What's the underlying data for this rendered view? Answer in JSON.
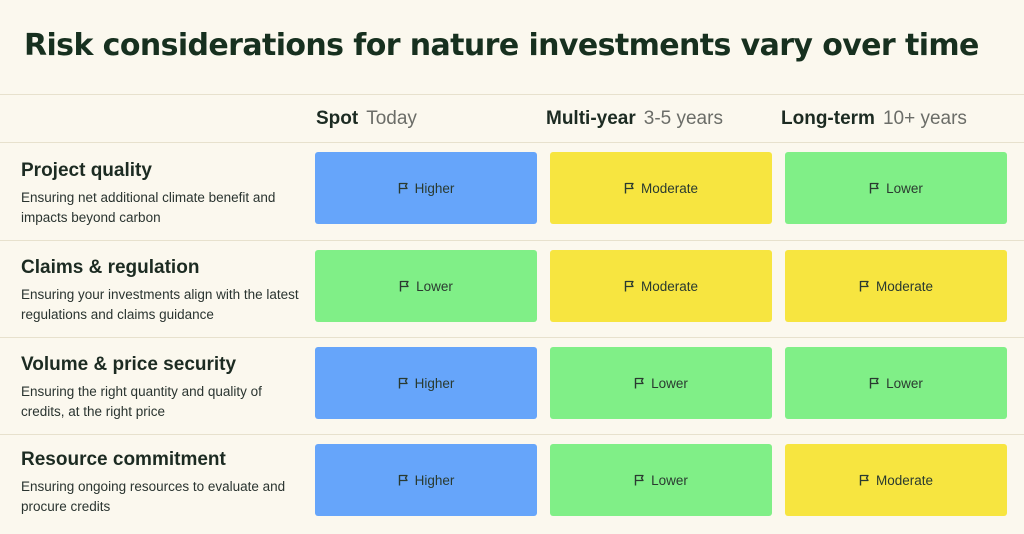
{
  "title": "Risk considerations for nature investments vary over time",
  "columns": [
    {
      "name": "Spot",
      "sub": "Today"
    },
    {
      "name": "Multi-year",
      "sub": "3-5 years"
    },
    {
      "name": "Long-term",
      "sub": "10+ years"
    }
  ],
  "rows": [
    {
      "title": "Project quality",
      "desc": "Ensuring net additional climate benefit and impacts beyond carbon",
      "cells": [
        "Higher",
        "Moderate",
        "Lower"
      ]
    },
    {
      "title": "Claims & regulation",
      "desc": "Ensuring your investments align with the latest regulations and claims guidance",
      "cells": [
        "Lower",
        "Moderate",
        "Moderate"
      ]
    },
    {
      "title": "Volume & price security",
      "desc": "Ensuring the right quantity and quality of credits, at the right price",
      "cells": [
        "Higher",
        "Lower",
        "Lower"
      ]
    },
    {
      "title": "Resource commitment",
      "desc": "Ensuring ongoing resources to evaluate and procure credits",
      "cells": [
        "Higher",
        "Lower",
        "Moderate"
      ]
    }
  ],
  "colors": {
    "Higher": "#66a5fa",
    "Moderate": "#f7e540",
    "Lower": "#80ef87",
    "background": "#fbf8ee"
  },
  "cell_icon": "flag-icon"
}
